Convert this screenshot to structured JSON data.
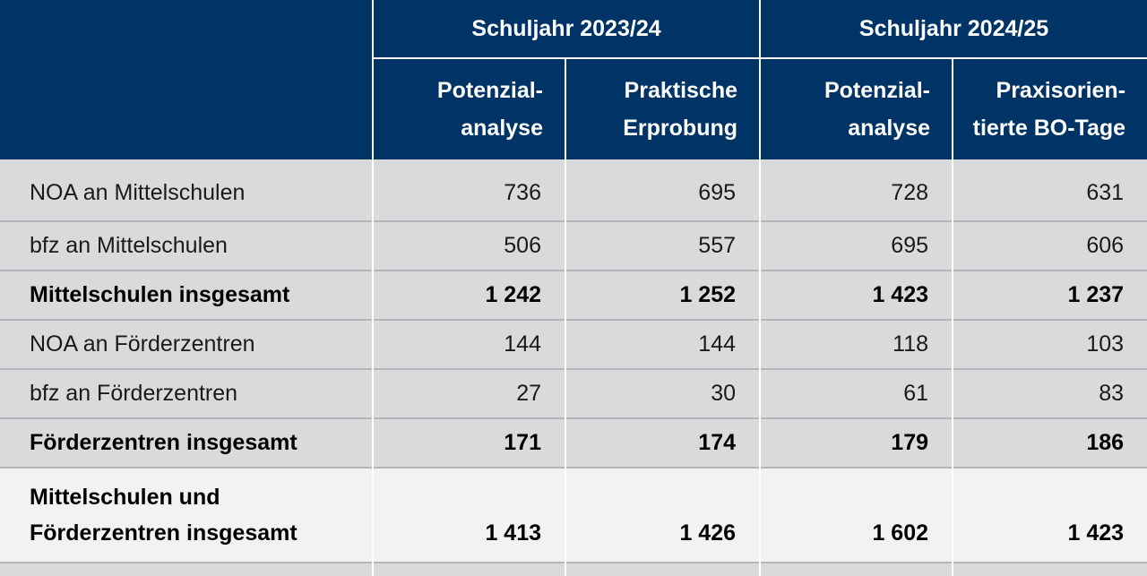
{
  "header": {
    "group1": "Schuljahr 2023/24",
    "group2": "Schuljahr 2024/25",
    "col1": [
      "Potenzial-",
      "analyse"
    ],
    "col2": [
      "Praktische",
      "Erprobung"
    ],
    "col3": [
      "Potenzial-",
      "analyse"
    ],
    "col4": [
      "Praxisorien-",
      "tierte BO-Tage"
    ]
  },
  "rows": [
    {
      "label": "NOA an Mittelschulen",
      "values": [
        "736",
        "695",
        "728",
        "631"
      ]
    },
    {
      "label": "bfz an Mittelschulen",
      "values": [
        "506",
        "557",
        "695",
        "606"
      ]
    },
    {
      "label": "Mittelschulen insgesamt",
      "values": [
        "1 242",
        "1 252",
        "1 423",
        "1 237"
      ]
    },
    {
      "label": "NOA an Förderzentren",
      "values": [
        "144",
        "144",
        "118",
        "103"
      ]
    },
    {
      "label": "bfz an Förderzentren",
      "values": [
        "27",
        "30",
        "61",
        "83"
      ]
    },
    {
      "label": "Förderzentren insgesamt",
      "values": [
        "171",
        "174",
        "179",
        "186"
      ]
    }
  ],
  "total": {
    "label": [
      "Mittelschulen und",
      "Förderzentren insgesamt"
    ],
    "values": [
      "1 413",
      "1 426",
      "1 602",
      "1 423"
    ]
  }
}
